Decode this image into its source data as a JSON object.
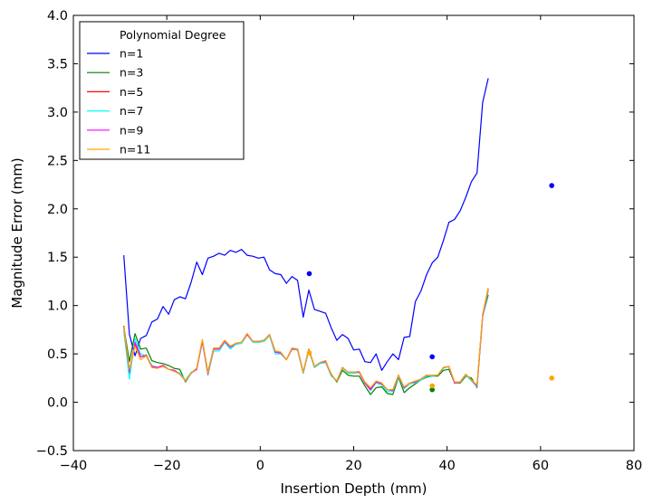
{
  "chart_data": {
    "type": "line",
    "title": "",
    "xlabel": "Insertion Depth (mm)",
    "ylabel": "Magnitude Error (mm)",
    "xlim": [
      -40,
      80
    ],
    "ylim": [
      -0.5,
      4.0
    ],
    "xticks": [
      -40,
      -20,
      0,
      20,
      40,
      60,
      80
    ],
    "yticks": [
      -0.5,
      0.0,
      0.5,
      1.0,
      1.5,
      2.0,
      2.5,
      3.0,
      3.5,
      4.0
    ],
    "xtick_labels": [
      "−40",
      "−20",
      "0",
      "20",
      "40",
      "60",
      "80"
    ],
    "ytick_labels": [
      "−0.5",
      "0.0",
      "0.5",
      "1.0",
      "1.5",
      "2.0",
      "2.5",
      "3.0",
      "3.5",
      "4.0"
    ],
    "grid": false,
    "legend": {
      "title": "Polynomial Degree",
      "placement": "top-left"
    },
    "x": [
      -29.2,
      -28.0,
      -26.8,
      -25.6,
      -24.4,
      -23.2,
      -22.0,
      -20.8,
      -19.6,
      -18.4,
      -17.2,
      -16.0,
      -14.8,
      -13.6,
      -12.4,
      -11.2,
      -10.0,
      -8.8,
      -7.6,
      -6.4,
      -5.2,
      -4.0,
      -2.8,
      -1.6,
      -0.4,
      0.8,
      2.0,
      3.2,
      4.4,
      5.6,
      6.8,
      8.0,
      9.2,
      10.4,
      11.6,
      12.8,
      14.0,
      15.2,
      16.4,
      17.6,
      18.8,
      20.0,
      21.2,
      22.4,
      23.6,
      24.8,
      26.0,
      27.2,
      28.4,
      29.6,
      30.8,
      32.0,
      33.2,
      34.4,
      35.6,
      36.8,
      38.0,
      39.2,
      40.4,
      41.6,
      42.8,
      44.0,
      45.2,
      46.4,
      47.6,
      48.8,
      50.0,
      51.2,
      52.4,
      53.6,
      54.8,
      56.0,
      57.2,
      58.4,
      59.6,
      60.8,
      62.0,
      63.2,
      64.4,
      65.6,
      66.8,
      67.5
    ],
    "series": [
      {
        "name": "n=1",
        "color": "#0000ff",
        "values": [
          1.52,
          0.7,
          0.48,
          0.66,
          0.69,
          0.83,
          0.86,
          0.99,
          0.91,
          1.06,
          1.09,
          1.07,
          1.24,
          1.45,
          1.32,
          1.49,
          1.51,
          1.54,
          1.52,
          1.57,
          1.55,
          1.58,
          1.52,
          1.51,
          1.49,
          1.5,
          1.37,
          1.33,
          1.32,
          1.23,
          1.3,
          1.26,
          0.88,
          1.16,
          0.96,
          0.94,
          0.92,
          0.77,
          0.64,
          0.7,
          0.66,
          0.54,
          0.55,
          0.42,
          0.41,
          0.5,
          0.33,
          0.42,
          0.5,
          0.44,
          0.67,
          0.68,
          1.04,
          1.15,
          1.32,
          1.44,
          1.5,
          1.67,
          1.86,
          1.89,
          1.98,
          2.12,
          2.28,
          2.37,
          3.1,
          3.35,
          null,
          null,
          null,
          null,
          null,
          null,
          null,
          null,
          null,
          null,
          null,
          null,
          null,
          null,
          null,
          null
        ]
      },
      {
        "name": "n=3",
        "color": "#008000",
        "values": [
          0.78,
          0.42,
          0.71,
          0.55,
          0.56,
          0.43,
          0.41,
          0.4,
          0.38,
          0.35,
          0.34,
          0.21,
          0.3,
          0.35,
          0.63,
          0.31,
          0.55,
          0.55,
          0.63,
          0.57,
          0.6,
          0.61,
          0.7,
          0.63,
          0.62,
          0.63,
          0.69,
          0.52,
          0.51,
          0.44,
          0.55,
          0.54,
          0.3,
          0.54,
          0.36,
          0.4,
          0.42,
          0.29,
          0.21,
          0.33,
          0.28,
          0.27,
          0.27,
          0.17,
          0.08,
          0.15,
          0.16,
          0.09,
          0.08,
          0.26,
          0.1,
          0.15,
          0.19,
          0.23,
          0.26,
          0.27,
          0.27,
          0.33,
          0.34,
          0.2,
          0.2,
          0.27,
          0.25,
          0.15,
          0.89,
          1.11,
          null,
          null,
          null,
          null,
          null,
          null,
          null,
          null,
          null,
          null,
          null,
          null,
          null,
          null,
          null,
          null
        ]
      },
      {
        "name": "n=5",
        "color": "#ff0000",
        "values": [
          0.79,
          0.3,
          0.6,
          0.47,
          0.49,
          0.37,
          0.36,
          0.38,
          0.34,
          0.33,
          0.29,
          0.22,
          0.3,
          0.35,
          0.64,
          0.3,
          0.56,
          0.56,
          0.64,
          0.58,
          0.61,
          0.62,
          0.71,
          0.63,
          0.63,
          0.64,
          0.7,
          0.53,
          0.51,
          0.44,
          0.56,
          0.55,
          0.31,
          0.55,
          0.37,
          0.41,
          0.43,
          0.28,
          0.22,
          0.36,
          0.31,
          0.31,
          0.31,
          0.2,
          0.14,
          0.21,
          0.19,
          0.13,
          0.13,
          0.28,
          0.15,
          0.2,
          0.21,
          0.24,
          0.28,
          0.28,
          0.28,
          0.36,
          0.37,
          0.2,
          0.21,
          0.29,
          0.23,
          0.17,
          0.9,
          1.18,
          null,
          null,
          null,
          null,
          null,
          null,
          null,
          null,
          null,
          null,
          null,
          null,
          null,
          null,
          null,
          null
        ]
      },
      {
        "name": "n=7",
        "color": "#00ffff",
        "values": [
          0.74,
          0.24,
          0.66,
          0.5,
          0.48,
          0.38,
          0.36,
          0.37,
          0.34,
          0.32,
          0.3,
          0.23,
          0.31,
          0.34,
          0.62,
          0.28,
          0.53,
          0.53,
          0.62,
          0.55,
          0.6,
          0.61,
          0.7,
          0.62,
          0.62,
          0.63,
          0.69,
          0.5,
          0.5,
          0.44,
          0.55,
          0.54,
          0.3,
          0.54,
          0.36,
          0.4,
          0.41,
          0.27,
          0.22,
          0.35,
          0.3,
          0.3,
          0.31,
          0.2,
          0.12,
          0.2,
          0.18,
          0.11,
          0.11,
          0.27,
          0.14,
          0.19,
          0.2,
          0.23,
          0.27,
          0.27,
          0.28,
          0.35,
          0.37,
          0.2,
          0.21,
          0.28,
          0.22,
          0.16,
          0.88,
          1.15,
          null,
          null,
          null,
          null,
          null,
          null,
          null,
          null,
          null,
          null,
          null,
          null,
          null,
          null,
          null,
          null
        ]
      },
      {
        "name": "n=9",
        "color": "#ff00ff",
        "values": [
          0.77,
          0.32,
          0.62,
          0.47,
          0.48,
          0.37,
          0.36,
          0.38,
          0.34,
          0.33,
          0.29,
          0.22,
          0.3,
          0.34,
          0.63,
          0.29,
          0.55,
          0.55,
          0.63,
          0.57,
          0.61,
          0.62,
          0.7,
          0.63,
          0.63,
          0.64,
          0.7,
          0.52,
          0.51,
          0.44,
          0.55,
          0.55,
          0.31,
          0.55,
          0.37,
          0.41,
          0.42,
          0.28,
          0.22,
          0.36,
          0.31,
          0.31,
          0.31,
          0.2,
          0.13,
          0.21,
          0.19,
          0.13,
          0.12,
          0.28,
          0.15,
          0.2,
          0.21,
          0.24,
          0.28,
          0.28,
          0.28,
          0.36,
          0.37,
          0.2,
          0.21,
          0.29,
          0.23,
          0.17,
          0.89,
          1.17,
          null,
          null,
          null,
          null,
          null,
          null,
          null,
          null,
          null,
          null,
          null,
          null,
          null,
          null,
          null,
          null
        ]
      },
      {
        "name": "n=11",
        "color": "#ffa500",
        "values": [
          0.78,
          0.34,
          0.58,
          0.44,
          0.48,
          0.36,
          0.35,
          0.37,
          0.34,
          0.32,
          0.29,
          0.22,
          0.3,
          0.35,
          0.65,
          0.3,
          0.56,
          0.56,
          0.64,
          0.58,
          0.61,
          0.62,
          0.71,
          0.63,
          0.63,
          0.64,
          0.7,
          0.53,
          0.52,
          0.44,
          0.56,
          0.55,
          0.31,
          0.55,
          0.37,
          0.41,
          0.43,
          0.28,
          0.22,
          0.36,
          0.31,
          0.31,
          0.32,
          0.21,
          0.15,
          0.22,
          0.2,
          0.13,
          0.13,
          0.28,
          0.16,
          0.2,
          0.22,
          0.24,
          0.28,
          0.28,
          0.28,
          0.36,
          0.37,
          0.21,
          0.21,
          0.29,
          0.23,
          0.18,
          0.91,
          1.18,
          null,
          null,
          null,
          null,
          null,
          null,
          null,
          null,
          null,
          null,
          null,
          null,
          null,
          null,
          null,
          null
        ]
      }
    ],
    "markers": [
      {
        "series": "n=1",
        "x": 10.5,
        "y": 1.33
      },
      {
        "series": "n=1",
        "x": 36.8,
        "y": 0.47
      },
      {
        "series": "n=1",
        "x": 62.4,
        "y": 2.24
      },
      {
        "series": "n=3",
        "x": 36.8,
        "y": 0.13
      },
      {
        "series": "n=11",
        "x": 10.5,
        "y": 0.51
      },
      {
        "series": "n=11",
        "x": 36.8,
        "y": 0.17
      },
      {
        "series": "n=11",
        "x": 62.4,
        "y": 0.25
      }
    ]
  }
}
